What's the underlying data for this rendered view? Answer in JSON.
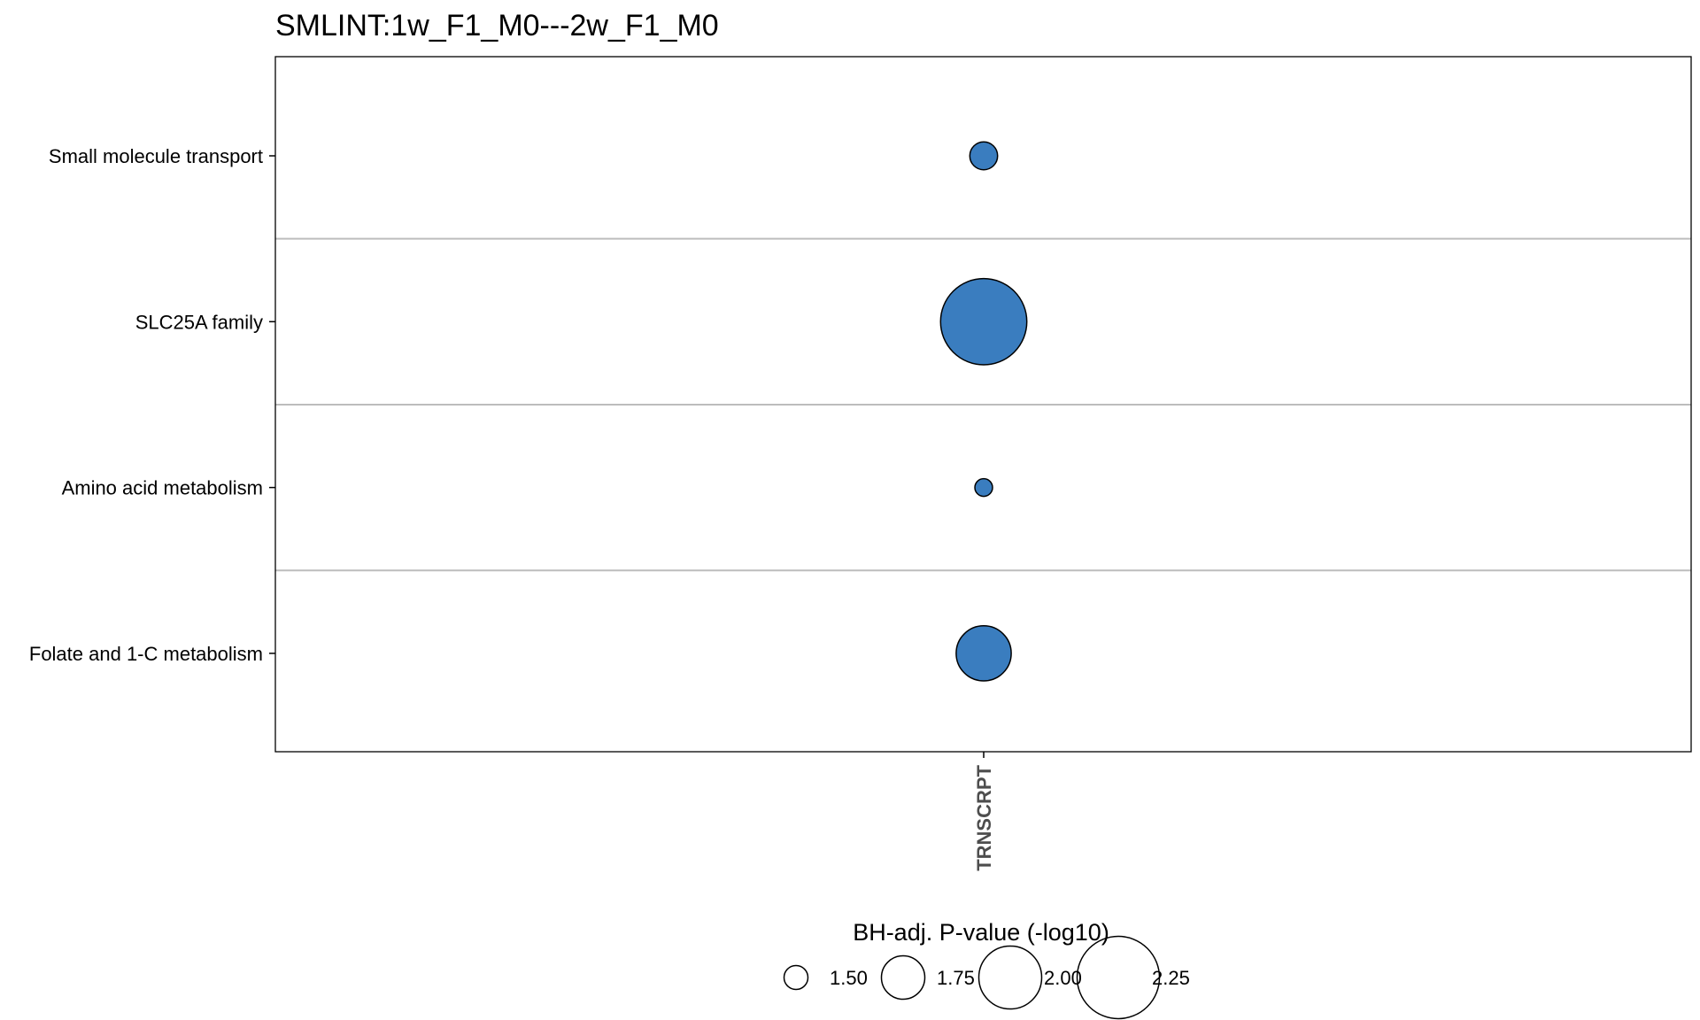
{
  "chart_data": {
    "type": "scatter",
    "title": "SMLINT:1w_F1_M0---2w_F1_M0",
    "x_categories": [
      "TRNSCRPT"
    ],
    "y_categories": [
      "Small molecule transport",
      "SLC25A family",
      "Amino acid metabolism",
      "Folate and 1-C metabolism"
    ],
    "points": [
      {
        "x": "TRNSCRPT",
        "y": "Small molecule transport",
        "size": 1.55
      },
      {
        "x": "TRNSCRPT",
        "y": "SLC25A family",
        "size": 2.3
      },
      {
        "x": "TRNSCRPT",
        "y": "Amino acid metabolism",
        "size": 1.42
      },
      {
        "x": "TRNSCRPT",
        "y": "Folate and 1-C metabolism",
        "size": 1.9
      }
    ],
    "legend": {
      "title": "BH-adj. P-value (-log10)",
      "placement": "bottom",
      "entries": [
        "1.50",
        "1.75",
        "2.00",
        "2.25"
      ],
      "values": [
        1.5,
        1.75,
        2.0,
        2.25
      ]
    },
    "point_color": "#3A7DBF",
    "grid": "horizontal separators between rows"
  }
}
